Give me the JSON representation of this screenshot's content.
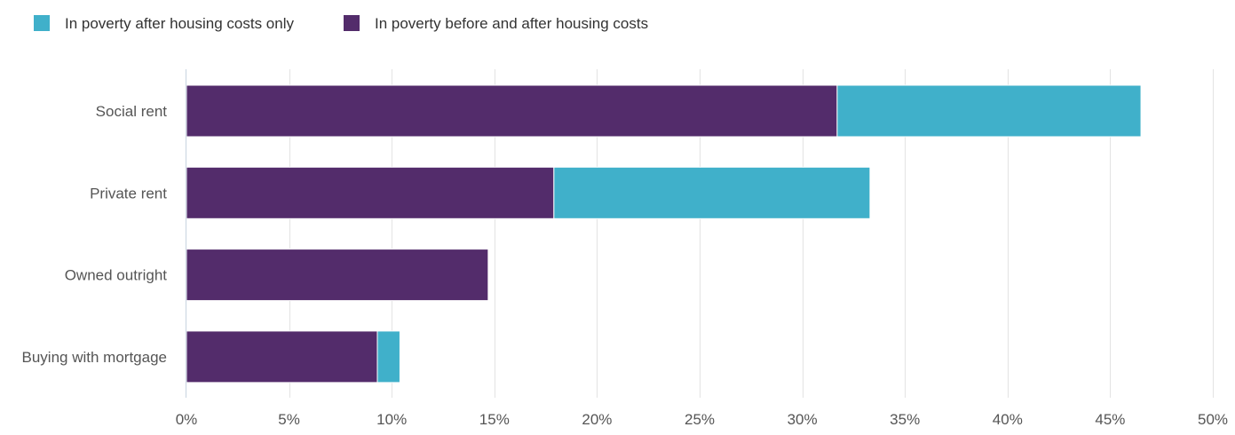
{
  "chart_data": {
    "type": "bar",
    "orientation": "horizontal",
    "stacked": true,
    "categories": [
      "Social rent",
      "Private rent",
      "Owned outright",
      "Buying with mortgage"
    ],
    "series": [
      {
        "name": "In poverty before and after housing costs",
        "color": "#532c6b",
        "values": [
          31.7,
          17.9,
          14.7,
          9.3
        ]
      },
      {
        "name": "In poverty after housing costs only",
        "color": "#40b0ca",
        "values": [
          14.8,
          15.4,
          0.0,
          1.1
        ]
      }
    ],
    "legend_order": [
      1,
      0
    ],
    "legend_position": "top-left",
    "xlim": [
      0,
      50
    ],
    "x_ticks": [
      0,
      5,
      10,
      15,
      20,
      25,
      30,
      35,
      40,
      45,
      50
    ],
    "x_tick_suffix": "%",
    "grid": "vertical"
  }
}
